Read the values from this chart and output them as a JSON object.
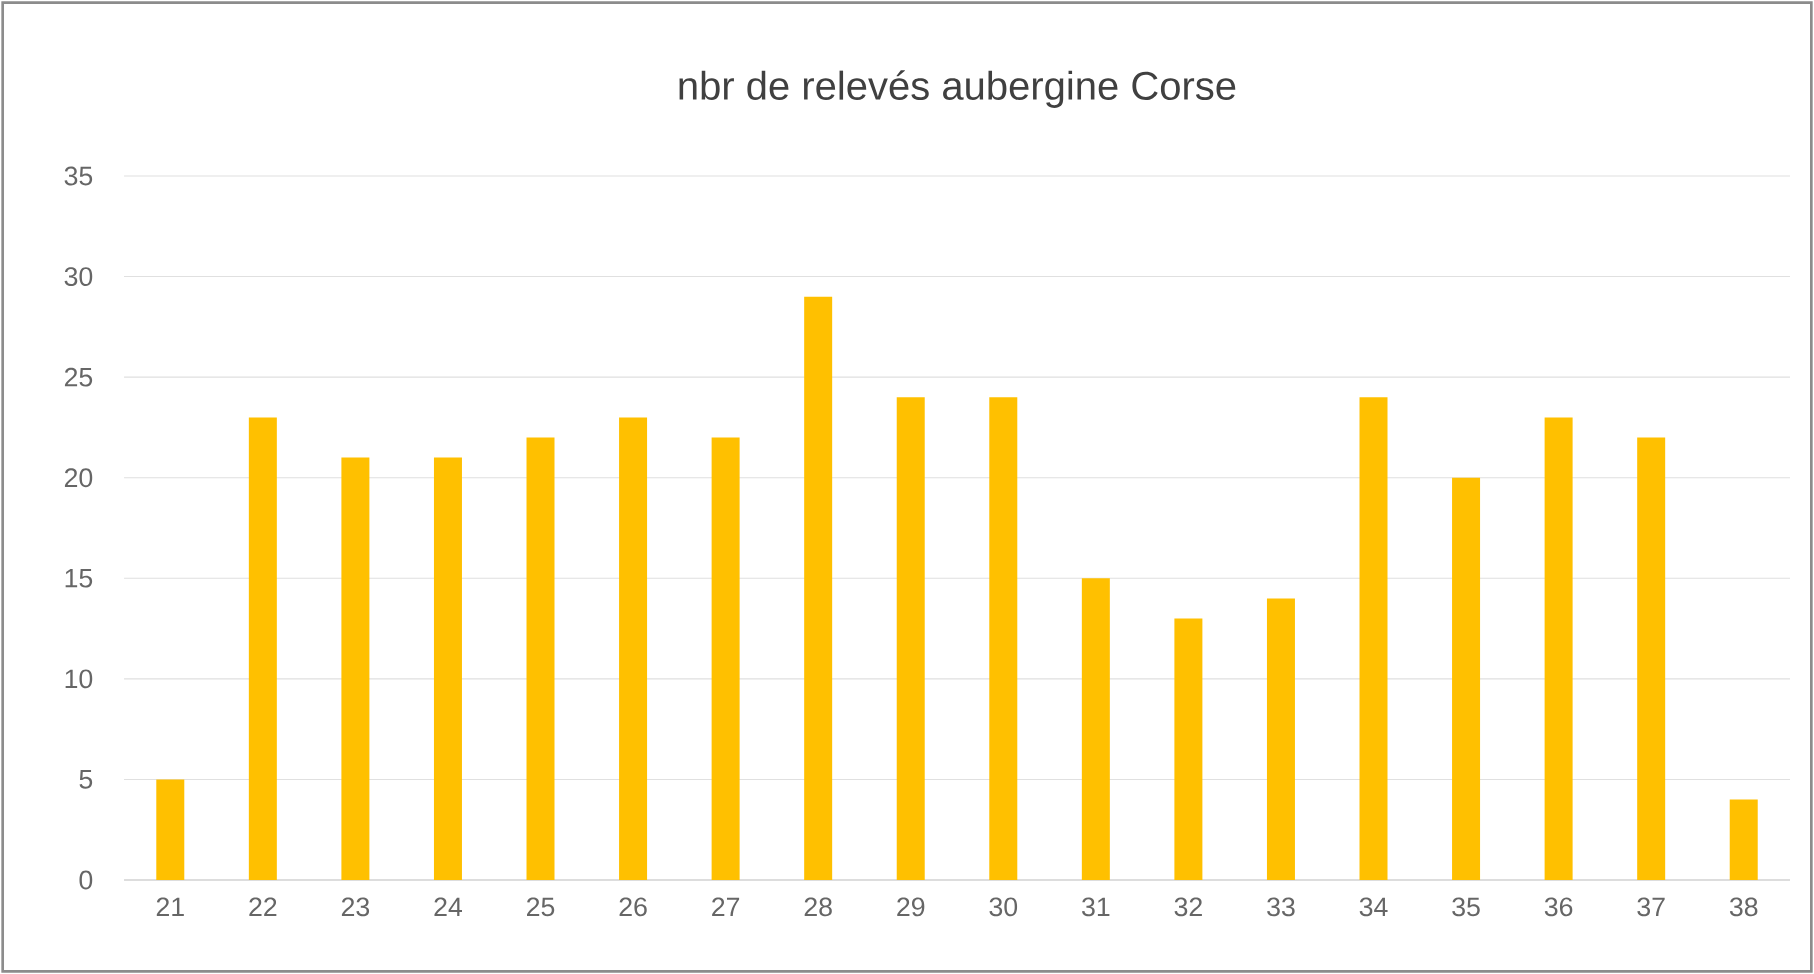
{
  "chart_data": {
    "type": "bar",
    "title": "nbr de relevés aubergine Corse",
    "categories": [
      "21",
      "22",
      "23",
      "24",
      "25",
      "26",
      "27",
      "28",
      "29",
      "30",
      "31",
      "32",
      "33",
      "34",
      "35",
      "36",
      "37",
      "38"
    ],
    "values": [
      5,
      23,
      21,
      21,
      22,
      23,
      22,
      29,
      24,
      24,
      15,
      13,
      14,
      24,
      20,
      23,
      22,
      4
    ],
    "color": "#ffc000",
    "ylim": [
      0,
      35
    ],
    "yticks": [
      0,
      5,
      10,
      15,
      20,
      25,
      30,
      35
    ],
    "grid": "y"
  }
}
